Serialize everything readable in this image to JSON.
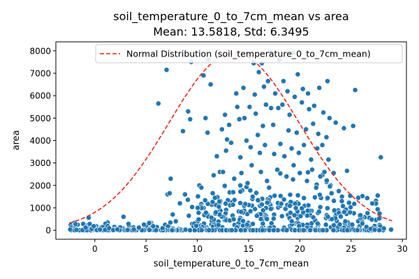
{
  "chart_data": {
    "type": "scatter",
    "title": "soil_temperature_0_to_7cm_mean vs area",
    "subtitle": "Mean: 13.5818, Std: 6.3495",
    "xlabel": "soil_temperature_0_to_7cm_mean",
    "ylabel": "area",
    "xlim": [
      -3.8,
      30.4
    ],
    "ylim": [
      -400,
      8400
    ],
    "xticks": [
      0,
      5,
      10,
      15,
      20,
      25,
      30
    ],
    "yticks": [
      0,
      1000,
      2000,
      3000,
      4000,
      5000,
      6000,
      7000,
      8000
    ],
    "grid": false,
    "legend": {
      "position": "top-right",
      "entries": [
        "Normal Distribution (soil_temperature_0_to_7cm_mean)"
      ]
    },
    "colors": {
      "points": "#1f77b4",
      "curve": "#e8261b",
      "point_edge": "#ffffff"
    },
    "normal_curve": {
      "mean": 13.5818,
      "std": 6.3495,
      "peak_area": 7900,
      "x_range": [
        -2.5,
        29.0
      ]
    },
    "series": [
      {
        "values": [
          [
            -2.4,
            40
          ],
          [
            -1.8,
            20
          ],
          [
            -1.2,
            10
          ],
          [
            -0.9,
            120
          ],
          [
            -0.6,
            560
          ],
          [
            -0.5,
            280
          ],
          [
            -0.3,
            60
          ],
          [
            -0.1,
            180
          ],
          [
            0.2,
            10
          ],
          [
            0.5,
            30
          ],
          [
            1.0,
            20
          ],
          [
            1.4,
            90
          ],
          [
            1.8,
            10
          ],
          [
            2.2,
            40
          ],
          [
            2.8,
            600
          ],
          [
            3.2,
            15
          ],
          [
            3.8,
            40
          ],
          [
            4.3,
            120
          ],
          [
            4.8,
            250
          ],
          [
            5.3,
            320
          ],
          [
            5.7,
            180
          ],
          [
            6.2,
            5650
          ],
          [
            6.6,
            90
          ],
          [
            7.0,
            7150
          ],
          [
            7.1,
            1600
          ],
          [
            7.3,
            1650
          ],
          [
            7.4,
            2300
          ],
          [
            7.6,
            700
          ],
          [
            7.9,
            400
          ],
          [
            8.3,
            1200
          ],
          [
            8.6,
            4420
          ],
          [
            8.8,
            1600
          ],
          [
            9.1,
            5300
          ],
          [
            9.3,
            4950
          ],
          [
            9.4,
            7500
          ],
          [
            9.7,
            300
          ],
          [
            9.9,
            200
          ],
          [
            10.2,
            2000
          ],
          [
            10.4,
            1900
          ],
          [
            10.6,
            6900
          ],
          [
            10.8,
            5000
          ],
          [
            11.0,
            4350
          ],
          [
            11.1,
            7600
          ],
          [
            11.3,
            6500
          ],
          [
            11.5,
            1650
          ],
          [
            11.6,
            2450
          ],
          [
            11.8,
            800
          ],
          [
            11.9,
            3300
          ],
          [
            12.1,
            1050
          ],
          [
            12.2,
            2600
          ],
          [
            12.4,
            4500
          ],
          [
            12.5,
            2600
          ],
          [
            12.7,
            5150
          ],
          [
            12.8,
            3550
          ],
          [
            12.9,
            4050
          ],
          [
            13.1,
            4700
          ],
          [
            13.3,
            3900
          ],
          [
            13.5,
            1700
          ],
          [
            13.6,
            2300
          ],
          [
            13.8,
            6100
          ],
          [
            13.9,
            5500
          ],
          [
            14.1,
            4950
          ],
          [
            14.2,
            3250
          ],
          [
            14.3,
            2550
          ],
          [
            14.5,
            6350
          ],
          [
            14.6,
            5000
          ],
          [
            14.8,
            4000
          ],
          [
            14.9,
            2100
          ],
          [
            15.1,
            5500
          ],
          [
            15.2,
            3700
          ],
          [
            15.3,
            2900
          ],
          [
            15.4,
            1500
          ],
          [
            15.5,
            7450
          ],
          [
            15.6,
            6050
          ],
          [
            15.7,
            5200
          ],
          [
            15.9,
            4250
          ],
          [
            16.0,
            7050
          ],
          [
            16.1,
            3450
          ],
          [
            16.2,
            2600
          ],
          [
            16.3,
            7450
          ],
          [
            16.4,
            4650
          ],
          [
            16.5,
            6400
          ],
          [
            16.6,
            3800
          ],
          [
            16.7,
            5600
          ],
          [
            16.8,
            2200
          ],
          [
            16.9,
            6650
          ],
          [
            17.0,
            1900
          ],
          [
            17.1,
            7950
          ],
          [
            17.2,
            5450
          ],
          [
            17.4,
            4700
          ],
          [
            17.5,
            3400
          ],
          [
            17.6,
            6100
          ],
          [
            17.8,
            2700
          ],
          [
            17.9,
            5450
          ],
          [
            18.0,
            7600
          ],
          [
            18.1,
            3850
          ],
          [
            18.3,
            5600
          ],
          [
            18.4,
            6650
          ],
          [
            18.5,
            3300
          ],
          [
            18.7,
            2400
          ],
          [
            18.8,
            6200
          ],
          [
            18.9,
            4450
          ],
          [
            19.0,
            5150
          ],
          [
            19.2,
            3650
          ],
          [
            19.3,
            7900
          ],
          [
            19.4,
            2900
          ],
          [
            19.5,
            5950
          ],
          [
            19.7,
            4350
          ],
          [
            19.8,
            6950
          ],
          [
            19.9,
            3450
          ],
          [
            20.0,
            2550
          ],
          [
            20.2,
            5700
          ],
          [
            20.3,
            6300
          ],
          [
            20.4,
            3800
          ],
          [
            20.6,
            4500
          ],
          [
            20.7,
            2200
          ],
          [
            20.8,
            6100
          ],
          [
            20.9,
            5400
          ],
          [
            21.1,
            3150
          ],
          [
            21.2,
            2700
          ],
          [
            21.3,
            4750
          ],
          [
            21.4,
            5550
          ],
          [
            21.6,
            1900
          ],
          [
            21.7,
            3650
          ],
          [
            21.8,
            4300
          ],
          [
            21.9,
            6350
          ],
          [
            22.0,
            2400
          ],
          [
            22.2,
            3800
          ],
          [
            22.3,
            5250
          ],
          [
            22.4,
            2600
          ],
          [
            22.6,
            4150
          ],
          [
            22.7,
            6650
          ],
          [
            22.8,
            3150
          ],
          [
            22.9,
            5000
          ],
          [
            23.1,
            1650
          ],
          [
            23.3,
            2550
          ],
          [
            23.5,
            4800
          ],
          [
            23.8,
            1750
          ],
          [
            24.1,
            1300
          ],
          [
            24.3,
            4550
          ],
          [
            24.6,
            2650
          ],
          [
            24.9,
            800
          ],
          [
            25.2,
            4650
          ],
          [
            25.4,
            6250
          ],
          [
            25.7,
            1450
          ],
          [
            26.1,
            300
          ],
          [
            26.5,
            150
          ],
          [
            26.9,
            60
          ],
          [
            27.3,
            20
          ],
          [
            27.6,
            1550
          ],
          [
            27.9,
            3250
          ],
          [
            28.2,
            80
          ],
          [
            28.9,
            30
          ]
        ]
      }
    ]
  }
}
